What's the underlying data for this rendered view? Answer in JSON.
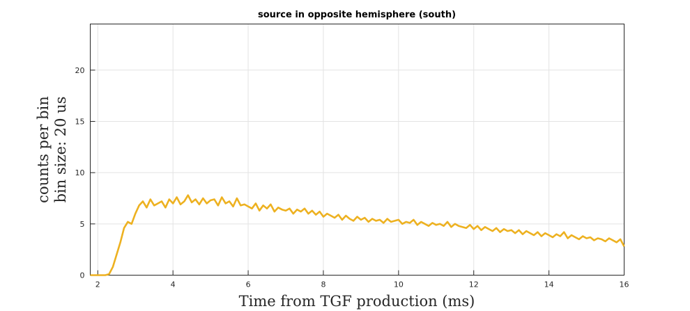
{
  "chart_data": {
    "type": "line",
    "title": "source in opposite hemisphere (south)",
    "xlabel": "Time from TGF production (ms)",
    "ylabel_lines": [
      "counts per bin",
      "bin size: 20 us"
    ],
    "xlim": [
      1.8,
      16
    ],
    "ylim": [
      0,
      24.5
    ],
    "xticks": [
      2,
      4,
      6,
      8,
      10,
      12,
      14,
      16
    ],
    "yticks": [
      0,
      5,
      10,
      15,
      20
    ],
    "grid": true,
    "line_color": "#EDB120",
    "series": [
      {
        "x": [
          1.8,
          2.0,
          2.2,
          2.3,
          2.4,
          2.5,
          2.6,
          2.7,
          2.8,
          2.9,
          3.0,
          3.1,
          3.2,
          3.3,
          3.4,
          3.5,
          3.6,
          3.7,
          3.8,
          3.9,
          4.0,
          4.1,
          4.2,
          4.3,
          4.4,
          4.5,
          4.6,
          4.7,
          4.8,
          4.9,
          5.0,
          5.1,
          5.2,
          5.3,
          5.4,
          5.5,
          5.6,
          5.7,
          5.8,
          5.9,
          6.0,
          6.1,
          6.2,
          6.3,
          6.4,
          6.5,
          6.6,
          6.7,
          6.8,
          6.9,
          7.0,
          7.1,
          7.2,
          7.3,
          7.4,
          7.5,
          7.6,
          7.7,
          7.8,
          7.9,
          8.0,
          8.1,
          8.2,
          8.3,
          8.4,
          8.5,
          8.6,
          8.7,
          8.8,
          8.9,
          9.0,
          9.1,
          9.2,
          9.3,
          9.4,
          9.5,
          9.6,
          9.7,
          9.8,
          9.9,
          10.0,
          10.1,
          10.2,
          10.3,
          10.4,
          10.5,
          10.6,
          10.7,
          10.8,
          10.9,
          11.0,
          11.1,
          11.2,
          11.3,
          11.4,
          11.5,
          11.6,
          11.7,
          11.8,
          11.9,
          12.0,
          12.1,
          12.2,
          12.3,
          12.4,
          12.5,
          12.6,
          12.7,
          12.8,
          12.9,
          13.0,
          13.1,
          13.2,
          13.3,
          13.4,
          13.5,
          13.6,
          13.7,
          13.8,
          13.9,
          14.0,
          14.1,
          14.2,
          14.3,
          14.4,
          14.5,
          14.6,
          14.7,
          14.8,
          14.9,
          15.0,
          15.1,
          15.2,
          15.3,
          15.4,
          15.5,
          15.6,
          15.7,
          15.8,
          15.9,
          16.0
        ],
        "y": [
          0,
          0,
          0,
          0.1,
          0.8,
          2.0,
          3.2,
          4.6,
          5.2,
          5.0,
          6.0,
          6.8,
          7.2,
          6.6,
          7.4,
          6.8,
          7.0,
          7.2,
          6.6,
          7.4,
          7.0,
          7.6,
          6.9,
          7.2,
          7.8,
          7.1,
          7.4,
          6.9,
          7.5,
          7.0,
          7.3,
          7.4,
          6.8,
          7.6,
          7.0,
          7.2,
          6.7,
          7.5,
          6.8,
          6.9,
          6.7,
          6.5,
          7.0,
          6.3,
          6.8,
          6.5,
          6.9,
          6.2,
          6.6,
          6.4,
          6.3,
          6.5,
          6.0,
          6.4,
          6.2,
          6.5,
          6.0,
          6.3,
          5.9,
          6.2,
          5.7,
          6.0,
          5.8,
          5.6,
          5.9,
          5.4,
          5.8,
          5.5,
          5.3,
          5.7,
          5.4,
          5.6,
          5.2,
          5.5,
          5.3,
          5.4,
          5.1,
          5.5,
          5.2,
          5.3,
          5.4,
          5.0,
          5.2,
          5.1,
          5.4,
          4.9,
          5.2,
          5.0,
          4.8,
          5.1,
          4.9,
          5.0,
          4.8,
          5.2,
          4.7,
          5.0,
          4.8,
          4.7,
          4.6,
          4.9,
          4.5,
          4.8,
          4.4,
          4.7,
          4.5,
          4.3,
          4.6,
          4.2,
          4.5,
          4.3,
          4.4,
          4.1,
          4.4,
          4.0,
          4.3,
          4.1,
          3.9,
          4.2,
          3.8,
          4.1,
          3.9,
          3.7,
          4.0,
          3.8,
          4.2,
          3.6,
          3.9,
          3.7,
          3.5,
          3.8,
          3.6,
          3.7,
          3.4,
          3.6,
          3.5,
          3.3,
          3.6,
          3.4,
          3.2,
          3.5,
          2.8
        ]
      }
    ]
  }
}
